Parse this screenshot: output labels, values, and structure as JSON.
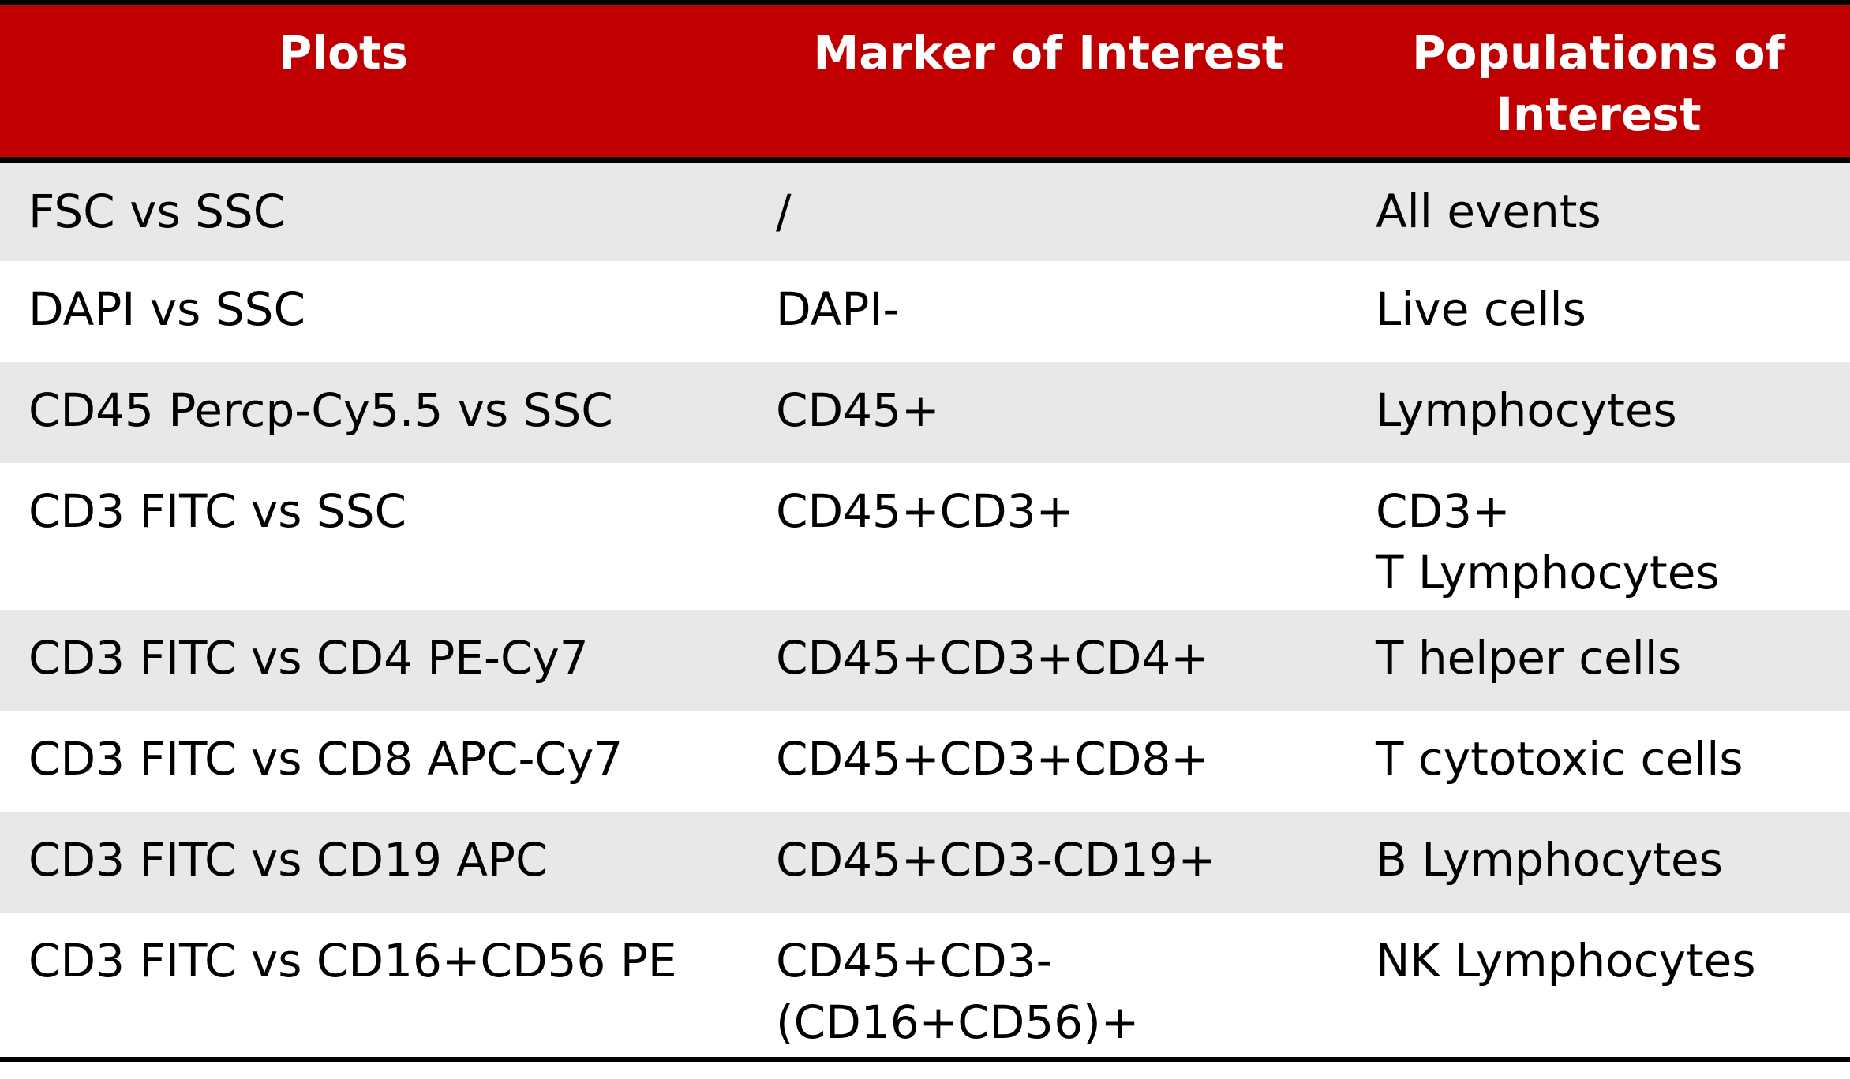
{
  "header": {
    "plots": "Plots",
    "marker": "Marker of Interest",
    "populations": "Populations of\nInterest"
  },
  "rows": [
    {
      "plot": "FSC vs SSC",
      "marker": "/",
      "population": "All events"
    },
    {
      "plot": "DAPI vs SSC",
      "marker": "DAPI-",
      "population": "Live cells"
    },
    {
      "plot": "CD45 Percp-Cy5.5 vs SSC",
      "marker": "CD45+",
      "population": "Lymphocytes"
    },
    {
      "plot": "CD3 FITC vs SSC",
      "marker": "CD45+CD3+",
      "population": "CD3+\nT Lymphocytes"
    },
    {
      "plot": "CD3 FITC vs CD4 PE-Cy7",
      "marker": "CD45+CD3+CD4+",
      "population": "T helper cells"
    },
    {
      "plot": "CD3 FITC vs CD8 APC-Cy7",
      "marker": "CD45+CD3+CD8+",
      "population": "T cytotoxic cells"
    },
    {
      "plot": "CD3 FITC vs CD19 APC",
      "marker": "CD45+CD3-CD19+",
      "population": "B Lymphocytes"
    },
    {
      "plot": "CD3 FITC vs CD16+CD56 PE",
      "marker": "CD45+CD3-\n(CD16+CD56)+",
      "population": "NK Lymphocytes"
    }
  ],
  "colors": {
    "header_bg": "#c00000",
    "header_text": "#ffffff",
    "shaded_row": "#e8e8e8",
    "rule": "#000000"
  }
}
